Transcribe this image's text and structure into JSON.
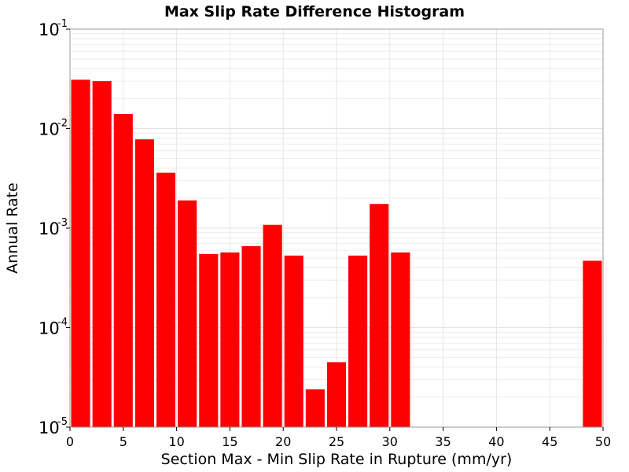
{
  "chart_data": {
    "type": "bar",
    "title": "Max Slip Rate Difference Histogram",
    "xlabel": "Section Max - Min Slip Rate in Rupture (mm/yr)",
    "ylabel": "Annual Rate",
    "xlim": [
      0,
      50
    ],
    "ylim": [
      1e-05,
      0.1
    ],
    "y_scale": "log",
    "grid": true,
    "bar_color": "#ff0000",
    "bin_width": 2,
    "x_ticks": [
      "0",
      "5",
      "10",
      "15",
      "20",
      "25",
      "30",
      "35",
      "40",
      "45",
      "50"
    ],
    "y_ticks": [
      {
        "base": "10",
        "exp": "-5"
      },
      {
        "base": "10",
        "exp": "-4"
      },
      {
        "base": "10",
        "exp": "-3"
      },
      {
        "base": "10",
        "exp": "-2"
      },
      {
        "base": "10",
        "exp": "-1"
      }
    ],
    "bars": [
      {
        "x": 1,
        "value": 0.031
      },
      {
        "x": 3,
        "value": 0.03
      },
      {
        "x": 5,
        "value": 0.014
      },
      {
        "x": 7,
        "value": 0.0078
      },
      {
        "x": 9,
        "value": 0.0036
      },
      {
        "x": 11,
        "value": 0.0019
      },
      {
        "x": 13,
        "value": 0.00055
      },
      {
        "x": 15,
        "value": 0.00057
      },
      {
        "x": 17,
        "value": 0.00066
      },
      {
        "x": 19,
        "value": 0.00108
      },
      {
        "x": 21,
        "value": 0.00053
      },
      {
        "x": 23,
        "value": 2.4e-05
      },
      {
        "x": 25,
        "value": 4.5e-05
      },
      {
        "x": 27,
        "value": 0.00053
      },
      {
        "x": 29,
        "value": 0.00175
      },
      {
        "x": 31,
        "value": 0.00057
      },
      {
        "x": 49,
        "value": 0.00047
      }
    ]
  }
}
